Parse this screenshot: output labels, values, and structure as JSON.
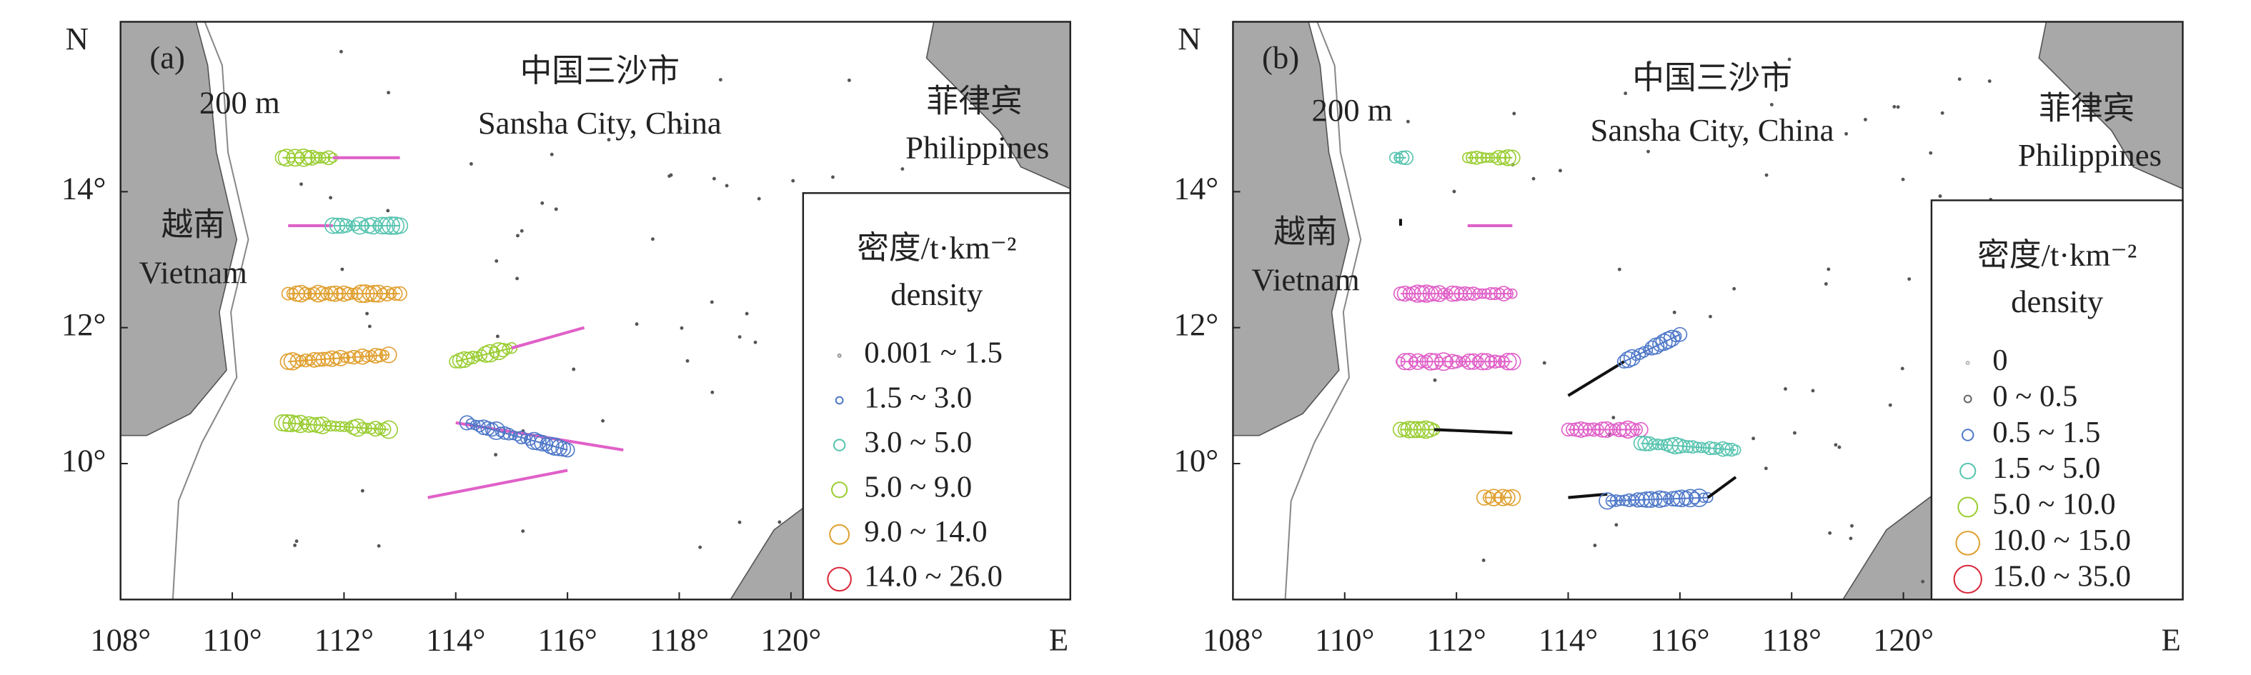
{
  "panels": [
    {
      "label": "(a)",
      "x_axis_label": "E",
      "y_axis_label": "N",
      "xlim": [
        108,
        125
      ],
      "ylim": [
        8,
        16.5
      ],
      "xticks": [
        {
          "value": 108,
          "label": "108°"
        },
        {
          "value": 110,
          "label": "110°"
        },
        {
          "value": 112,
          "label": "112°"
        },
        {
          "value": 114,
          "label": "114°"
        },
        {
          "value": 116,
          "label": "116°"
        },
        {
          "value": 118,
          "label": "118°"
        },
        {
          "value": 120,
          "label": "120°"
        }
      ],
      "yticks": [
        {
          "value": 10,
          "label": "10°"
        },
        {
          "value": 12,
          "label": "12°"
        },
        {
          "value": 14,
          "label": "14°"
        }
      ],
      "places": [
        "中国三沙市",
        "Sansha City, China",
        "菲律宾",
        "Philippines",
        "越南",
        "Vietnam",
        "200 m"
      ],
      "legend": {
        "title": "密度/t·km⁻²",
        "subtitle": "density",
        "entries": [
          {
            "label": "0.001 ~ 1.5",
            "color": "#999999"
          },
          {
            "label": "1.5 ~ 3.0",
            "color": "#4f78c8"
          },
          {
            "label": "3.0 ~ 5.0",
            "color": "#58c4b0"
          },
          {
            "label": "5.0 ~ 9.0",
            "color": "#9acd32"
          },
          {
            "label": "9.0 ~ 14.0",
            "color": "#e0a030"
          },
          {
            "label": "14.0 ~ 26.0",
            "color": "#d8283a"
          }
        ]
      },
      "tracks": [
        {
          "lon": [
            110.9,
            111.8
          ],
          "lat": [
            14.5,
            14.5
          ],
          "color": "#9acd32",
          "style": "circles"
        },
        {
          "lon": [
            111.8,
            113
          ],
          "lat": [
            14.5,
            14.5
          ],
          "color": "#e060c8",
          "style": "line"
        },
        {
          "lon": [
            111,
            111.8
          ],
          "lat": [
            13.5,
            13.5
          ],
          "color": "#e060c8",
          "style": "line"
        },
        {
          "lon": [
            111.8,
            113
          ],
          "lat": [
            13.5,
            13.5
          ],
          "color": "#58c4b0",
          "style": "circles"
        },
        {
          "lon": [
            111,
            113
          ],
          "lat": [
            12.5,
            12.5
          ],
          "color": "#e0a030",
          "style": "circles"
        },
        {
          "lon": [
            111,
            112.8
          ],
          "lat": [
            11.5,
            11.6
          ],
          "color": "#e0a030",
          "style": "circles"
        },
        {
          "lon": [
            110.9,
            112.8
          ],
          "lat": [
            10.6,
            10.5
          ],
          "color": "#9acd32",
          "style": "circles"
        },
        {
          "lon": [
            114,
            115
          ],
          "lat": [
            11.5,
            11.7
          ],
          "color": "#9acd32",
          "style": "circles"
        },
        {
          "lon": [
            115,
            116.3
          ],
          "lat": [
            11.7,
            12.0
          ],
          "color": "#e060c8",
          "style": "line"
        },
        {
          "lon": [
            114,
            117
          ],
          "lat": [
            10.6,
            10.2
          ],
          "color": "#e060c8",
          "style": "line"
        },
        {
          "lon": [
            114.2,
            116
          ],
          "lat": [
            10.6,
            10.2
          ],
          "color": "#4f78c8",
          "style": "circles"
        },
        {
          "lon": [
            113.5,
            116
          ],
          "lat": [
            9.5,
            9.9
          ],
          "color": "#e060c8",
          "style": "line"
        }
      ]
    },
    {
      "label": "(b)",
      "x_axis_label": "E",
      "y_axis_label": "N",
      "xlim": [
        108,
        125
      ],
      "ylim": [
        8,
        16.5
      ],
      "xticks": [
        {
          "value": 108,
          "label": "108°"
        },
        {
          "value": 110,
          "label": "110°"
        },
        {
          "value": 112,
          "label": "112°"
        },
        {
          "value": 114,
          "label": "114°"
        },
        {
          "value": 116,
          "label": "116°"
        },
        {
          "value": 118,
          "label": "118°"
        },
        {
          "value": 120,
          "label": "120°"
        }
      ],
      "yticks": [
        {
          "value": 10,
          "label": "10°"
        },
        {
          "value": 12,
          "label": "12°"
        },
        {
          "value": 14,
          "label": "14°"
        }
      ],
      "places": [
        "中国三沙市",
        "Sansha City, China",
        "菲律宾",
        "Philippines",
        "越南",
        "Vietnam",
        "200 m"
      ],
      "legend": {
        "title": "密度/t·km⁻²",
        "subtitle": "density",
        "entries": [
          {
            "label": "0",
            "color": "#bbbbbb"
          },
          {
            "label": "0 ~ 0.5",
            "color": "#666666"
          },
          {
            "label": "0.5 ~ 1.5",
            "color": "#4f78c8"
          },
          {
            "label": "1.5 ~ 5.0",
            "color": "#58c4b0"
          },
          {
            "label": "5.0 ~ 10.0",
            "color": "#9acd32"
          },
          {
            "label": "10.0 ~ 15.0",
            "color": "#e0a030"
          },
          {
            "label": "15.0 ~ 35.0",
            "color": "#d8283a"
          }
        ]
      },
      "tracks": [
        {
          "lon": [
            110.9,
            111.1
          ],
          "lat": [
            14.5,
            14.5
          ],
          "color": "#58c4b0",
          "style": "circles"
        },
        {
          "lon": [
            112.2,
            113
          ],
          "lat": [
            14.5,
            14.5
          ],
          "color": "#9acd32",
          "style": "circles"
        },
        {
          "lon": [
            112.2,
            113
          ],
          "lat": [
            13.5,
            13.5
          ],
          "color": "#e060c8",
          "style": "line"
        },
        {
          "lon": [
            111,
            111
          ],
          "lat": [
            13.5,
            13.6
          ],
          "color": "#111111",
          "style": "line"
        },
        {
          "lon": [
            111,
            113
          ],
          "lat": [
            12.5,
            12.5
          ],
          "color": "#e060c8",
          "style": "circles"
        },
        {
          "lon": [
            111,
            113
          ],
          "lat": [
            11.5,
            11.5
          ],
          "color": "#e060c8",
          "style": "circles"
        },
        {
          "lon": [
            111,
            111.6
          ],
          "lat": [
            10.5,
            10.5
          ],
          "color": "#9acd32",
          "style": "circles"
        },
        {
          "lon": [
            111.6,
            113
          ],
          "lat": [
            10.5,
            10.45
          ],
          "color": "#111111",
          "style": "line"
        },
        {
          "lon": [
            112.5,
            113
          ],
          "lat": [
            9.5,
            9.5
          ],
          "color": "#e0a030",
          "style": "circles"
        },
        {
          "lon": [
            114,
            115
          ],
          "lat": [
            11.0,
            11.5
          ],
          "color": "#111111",
          "style": "line"
        },
        {
          "lon": [
            115,
            116
          ],
          "lat": [
            11.5,
            11.9
          ],
          "color": "#4f78c8",
          "style": "circles"
        },
        {
          "lon": [
            114,
            115.3
          ],
          "lat": [
            10.5,
            10.5
          ],
          "color": "#e060c8",
          "style": "circles"
        },
        {
          "lon": [
            115.3,
            117
          ],
          "lat": [
            10.3,
            10.2
          ],
          "color": "#58c4b0",
          "style": "circles"
        },
        {
          "lon": [
            114,
            114.7
          ],
          "lat": [
            9.5,
            9.55
          ],
          "color": "#111111",
          "style": "line"
        },
        {
          "lon": [
            114.7,
            116.5
          ],
          "lat": [
            9.45,
            9.5
          ],
          "color": "#4f78c8",
          "style": "circles"
        },
        {
          "lon": [
            116.5,
            117
          ],
          "lat": [
            9.5,
            9.8
          ],
          "color": "#111111",
          "style": "line"
        }
      ]
    }
  ]
}
